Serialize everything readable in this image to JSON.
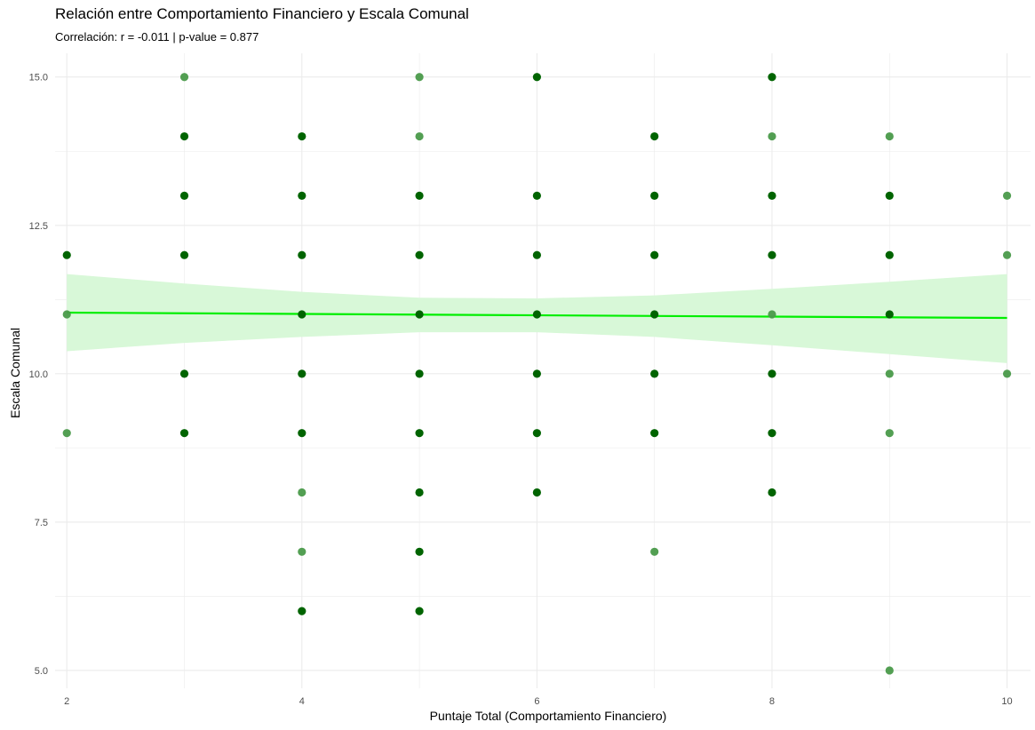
{
  "chart_data": {
    "type": "scatter",
    "title": "Relación entre Comportamiento Financiero y Escala Comunal",
    "subtitle": "Correlación: r = -0.011 | p-value = 0.877",
    "xlabel": "Puntaje Total (Comportamiento Financiero)",
    "ylabel": "Escala Comunal",
    "xlim": [
      1.9,
      10.2
    ],
    "ylim": [
      4.7,
      15.4
    ],
    "x_ticks": [
      2,
      4,
      6,
      8,
      10
    ],
    "y_ticks": [
      5.0,
      7.5,
      10.0,
      12.5,
      15.0
    ],
    "grid": true,
    "colors": {
      "point_dark": "#006400",
      "point_light": "#4a9a4a",
      "fit_line": "#00ee00",
      "ci_band": "#d8f8d8",
      "grid": "#ebebeb"
    },
    "points": [
      {
        "x": 2,
        "y": 12,
        "dense": true
      },
      {
        "x": 2,
        "y": 11,
        "dense": false
      },
      {
        "x": 2,
        "y": 9,
        "dense": false
      },
      {
        "x": 3,
        "y": 15,
        "dense": false
      },
      {
        "x": 3,
        "y": 14,
        "dense": true
      },
      {
        "x": 3,
        "y": 13,
        "dense": true
      },
      {
        "x": 3,
        "y": 12,
        "dense": true
      },
      {
        "x": 3,
        "y": 10,
        "dense": true
      },
      {
        "x": 3,
        "y": 9,
        "dense": true
      },
      {
        "x": 4,
        "y": 14,
        "dense": true
      },
      {
        "x": 4,
        "y": 13,
        "dense": true
      },
      {
        "x": 4,
        "y": 12,
        "dense": true
      },
      {
        "x": 4,
        "y": 11,
        "dense": true
      },
      {
        "x": 4,
        "y": 10,
        "dense": true
      },
      {
        "x": 4,
        "y": 9,
        "dense": true
      },
      {
        "x": 4,
        "y": 8,
        "dense": false
      },
      {
        "x": 4,
        "y": 7,
        "dense": false
      },
      {
        "x": 4,
        "y": 6,
        "dense": true
      },
      {
        "x": 5,
        "y": 15,
        "dense": false
      },
      {
        "x": 5,
        "y": 14,
        "dense": false
      },
      {
        "x": 5,
        "y": 13,
        "dense": true
      },
      {
        "x": 5,
        "y": 12,
        "dense": true
      },
      {
        "x": 5,
        "y": 11,
        "dense": true
      },
      {
        "x": 5,
        "y": 10,
        "dense": true
      },
      {
        "x": 5,
        "y": 9,
        "dense": true
      },
      {
        "x": 5,
        "y": 8,
        "dense": true
      },
      {
        "x": 5,
        "y": 7,
        "dense": true
      },
      {
        "x": 5,
        "y": 6,
        "dense": true
      },
      {
        "x": 6,
        "y": 15,
        "dense": true
      },
      {
        "x": 6,
        "y": 13,
        "dense": true
      },
      {
        "x": 6,
        "y": 12,
        "dense": true
      },
      {
        "x": 6,
        "y": 11,
        "dense": true
      },
      {
        "x": 6,
        "y": 10,
        "dense": true
      },
      {
        "x": 6,
        "y": 9,
        "dense": true
      },
      {
        "x": 6,
        "y": 8,
        "dense": true
      },
      {
        "x": 7,
        "y": 14,
        "dense": true
      },
      {
        "x": 7,
        "y": 13,
        "dense": true
      },
      {
        "x": 7,
        "y": 12,
        "dense": true
      },
      {
        "x": 7,
        "y": 11,
        "dense": true
      },
      {
        "x": 7,
        "y": 10,
        "dense": true
      },
      {
        "x": 7,
        "y": 9,
        "dense": true
      },
      {
        "x": 7,
        "y": 7,
        "dense": false
      },
      {
        "x": 8,
        "y": 15,
        "dense": true
      },
      {
        "x": 8,
        "y": 14,
        "dense": false
      },
      {
        "x": 8,
        "y": 13,
        "dense": true
      },
      {
        "x": 8,
        "y": 12,
        "dense": true
      },
      {
        "x": 8,
        "y": 11,
        "dense": false
      },
      {
        "x": 8,
        "y": 10,
        "dense": true
      },
      {
        "x": 8,
        "y": 9,
        "dense": true
      },
      {
        "x": 8,
        "y": 8,
        "dense": true
      },
      {
        "x": 9,
        "y": 14,
        "dense": false
      },
      {
        "x": 9,
        "y": 13,
        "dense": true
      },
      {
        "x": 9,
        "y": 12,
        "dense": true
      },
      {
        "x": 9,
        "y": 11,
        "dense": true
      },
      {
        "x": 9,
        "y": 10,
        "dense": false
      },
      {
        "x": 9,
        "y": 9,
        "dense": false
      },
      {
        "x": 9,
        "y": 5,
        "dense": false
      },
      {
        "x": 10,
        "y": 13,
        "dense": false
      },
      {
        "x": 10,
        "y": 12,
        "dense": false
      },
      {
        "x": 10,
        "y": 10,
        "dense": false
      }
    ],
    "regression": {
      "x": [
        2,
        10
      ],
      "y": [
        11.03,
        10.94
      ]
    },
    "confidence_band": {
      "x": [
        2,
        3,
        4,
        5,
        6,
        7,
        8,
        9,
        10
      ],
      "upper": [
        11.68,
        11.52,
        11.38,
        11.28,
        11.27,
        11.32,
        11.43,
        11.55,
        11.68
      ],
      "lower": [
        10.38,
        10.52,
        10.62,
        10.7,
        10.7,
        10.62,
        10.48,
        10.33,
        10.18
      ]
    }
  }
}
